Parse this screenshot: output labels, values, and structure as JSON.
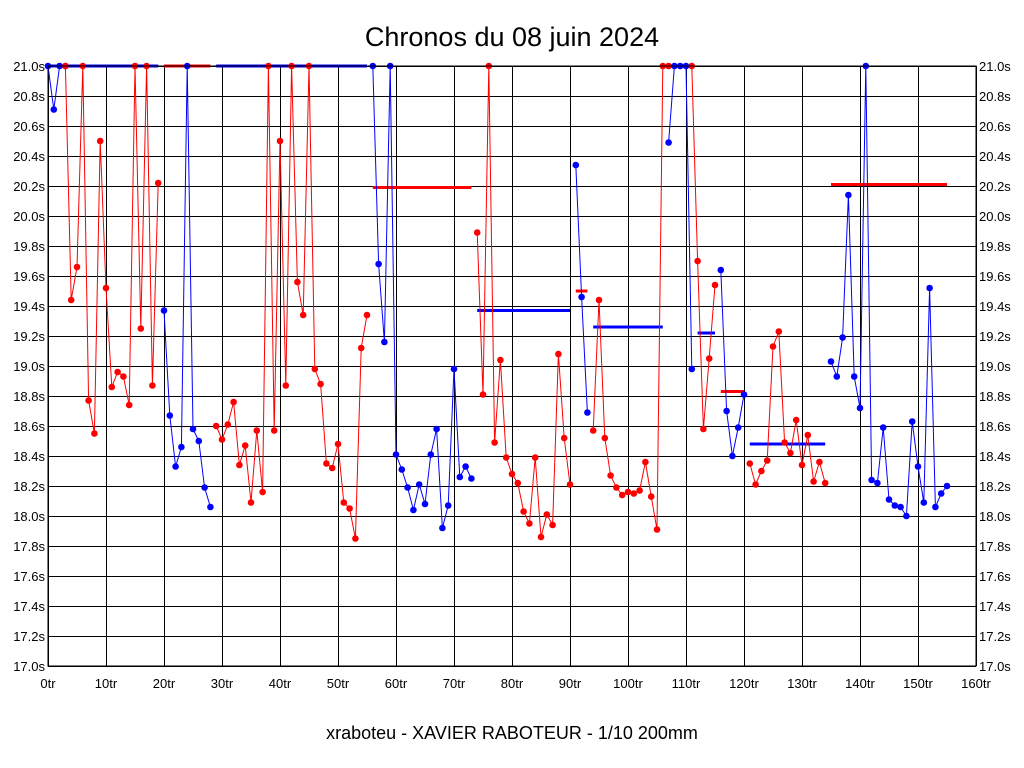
{
  "chart_data": {
    "type": "line",
    "title": "Chronos du 08 juin 2024",
    "subtitle": "xraboteu - XAVIER RABOTEUR - 1/10 200mm",
    "xlim": [
      0,
      160
    ],
    "ylim": [
      17.0,
      21.0
    ],
    "x_ticks": [
      0,
      10,
      20,
      30,
      40,
      50,
      60,
      70,
      80,
      90,
      100,
      110,
      120,
      130,
      140,
      150,
      160
    ],
    "x_tick_labels": [
      "0tr",
      "10tr",
      "20tr",
      "30tr",
      "40tr",
      "50tr",
      "60tr",
      "70tr",
      "80tr",
      "90tr",
      "100tr",
      "110tr",
      "120tr",
      "130tr",
      "140tr",
      "150tr",
      "160tr"
    ],
    "y_ticks": [
      17.0,
      17.2,
      17.4,
      17.6,
      17.8,
      18.0,
      18.2,
      18.4,
      18.6,
      18.8,
      19.0,
      19.2,
      19.4,
      19.6,
      19.8,
      20.0,
      20.2,
      20.4,
      20.6,
      20.8,
      21.0
    ],
    "y_tick_labels": [
      "17.0s",
      "17.2s",
      "17.4s",
      "17.6s",
      "17.8s",
      "18.0s",
      "18.2s",
      "18.4s",
      "18.6s",
      "18.8s",
      "19.0s",
      "19.2s",
      "19.4s",
      "19.6s",
      "19.8s",
      "20.0s",
      "20.2s",
      "20.4s",
      "20.6s",
      "20.8s",
      "21.0s"
    ],
    "grid": true,
    "colors": {
      "red": "#ff0000",
      "blue": "#0000ff"
    },
    "segments": [
      {
        "color": "blue",
        "x": [
          0,
          1,
          2,
          3
        ],
        "y": [
          21.0,
          20.71,
          21.0,
          21.0
        ]
      },
      {
        "color": "red",
        "x": [
          3,
          4,
          5,
          6,
          7,
          8,
          9,
          10,
          11,
          12,
          13,
          14,
          15,
          16,
          17,
          18,
          19
        ],
        "y": [
          21.0,
          19.44,
          19.66,
          21.0,
          18.77,
          18.55,
          20.5,
          19.52,
          18.86,
          18.96,
          18.93,
          18.74,
          21.0,
          19.25,
          21.0,
          18.87,
          20.22
        ]
      },
      {
        "color": "blue",
        "x": [
          20,
          21,
          22,
          23,
          24,
          25,
          26,
          27,
          28
        ],
        "y": [
          19.37,
          18.67,
          18.33,
          18.46,
          21.0,
          18.58,
          18.5,
          18.19,
          18.06
        ]
      },
      {
        "color": "red",
        "x": [
          29,
          30,
          31,
          32,
          33,
          34,
          35,
          36,
          37,
          38,
          39,
          40,
          41,
          42,
          43,
          44,
          45,
          46,
          47,
          48,
          49,
          50,
          51,
          52,
          53,
          54,
          55
        ],
        "y": [
          18.6,
          18.51,
          18.61,
          18.76,
          18.34,
          18.47,
          18.09,
          18.57,
          18.16,
          21.0,
          18.57,
          20.5,
          18.87,
          21.0,
          19.56,
          19.34,
          21.0,
          18.98,
          18.88,
          18.35,
          18.32,
          18.48,
          18.09,
          18.05,
          17.85,
          19.12,
          19.34
        ]
      },
      {
        "color": "blue",
        "x": [
          56,
          57,
          58,
          59,
          60,
          61,
          62,
          63,
          64,
          65,
          66,
          67,
          68,
          69,
          70,
          71,
          72,
          73
        ],
        "y": [
          21.0,
          19.68,
          19.16,
          21.0,
          18.41,
          18.31,
          18.19,
          18.04,
          18.21,
          18.08,
          18.41,
          18.58,
          17.92,
          18.07,
          18.98,
          18.26,
          18.33,
          18.25
        ]
      },
      {
        "color": "red",
        "x": [
          74,
          75,
          76,
          77,
          78,
          79,
          80,
          81,
          82,
          83,
          84,
          85,
          86,
          87,
          88,
          89,
          90
        ],
        "y": [
          19.89,
          18.81,
          21.0,
          18.49,
          19.04,
          18.39,
          18.28,
          18.22,
          18.03,
          17.95,
          18.39,
          17.86,
          18.01,
          17.94,
          19.08,
          18.52,
          18.21
        ]
      },
      {
        "color": "blue",
        "x": [
          91,
          92,
          93
        ],
        "y": [
          20.34,
          19.46,
          18.69
        ]
      },
      {
        "color": "red",
        "x": [
          94,
          95,
          96,
          97,
          98,
          99,
          100,
          101,
          102,
          103,
          104,
          105,
          106,
          107
        ],
        "y": [
          18.57,
          19.44,
          18.52,
          18.27,
          18.19,
          18.14,
          18.16,
          18.15,
          18.17,
          18.36,
          18.13,
          17.91,
          21.0,
          21.0
        ]
      },
      {
        "color": "blue",
        "x": [
          107,
          108,
          109,
          110,
          111
        ],
        "y": [
          20.49,
          21.0,
          21.0,
          21.0,
          18.98
        ]
      },
      {
        "color": "red",
        "x": [
          111,
          112,
          113,
          114,
          115
        ],
        "y": [
          21.0,
          19.7,
          18.58,
          19.05,
          19.54
        ]
      },
      {
        "color": "blue",
        "x": [
          116,
          117,
          118,
          119,
          120
        ],
        "y": [
          19.64,
          18.7,
          18.4,
          18.59,
          18.81
        ]
      },
      {
        "color": "red",
        "x": [
          121,
          122,
          123,
          124,
          125,
          126,
          127,
          128,
          129,
          130,
          131,
          132,
          133,
          134
        ],
        "y": [
          18.35,
          18.21,
          18.3,
          18.37,
          19.13,
          19.23,
          18.49,
          18.42,
          18.64,
          18.34,
          18.54,
          18.23,
          18.36,
          18.22
        ]
      },
      {
        "color": "blue",
        "x": [
          135,
          136,
          137,
          138,
          139,
          140,
          141,
          142,
          143,
          144,
          145,
          146,
          147,
          148,
          149,
          150,
          151,
          152,
          153,
          154,
          155
        ],
        "y": [
          19.03,
          18.93,
          19.19,
          20.14,
          18.93,
          18.72,
          21.0,
          18.24,
          18.22,
          18.59,
          18.11,
          18.07,
          18.06,
          18.0,
          18.63,
          18.33,
          18.09,
          19.52,
          18.06,
          18.15,
          18.2
        ]
      }
    ],
    "average_lines": [
      {
        "color": "blue",
        "x_start": 0,
        "x_end": 19,
        "y": 21.0
      },
      {
        "color": "red",
        "x_start": 20,
        "x_end": 28,
        "y": 21.0
      },
      {
        "color": "blue",
        "x_start": 29,
        "x_end": 55,
        "y": 21.0
      },
      {
        "color": "red",
        "x_start": 56,
        "x_end": 73,
        "y": 20.19
      },
      {
        "color": "blue",
        "x_start": 74,
        "x_end": 90,
        "y": 19.37
      },
      {
        "color": "red",
        "x_start": 91,
        "x_end": 93,
        "y": 19.5
      },
      {
        "color": "blue",
        "x_start": 94,
        "x_end": 106,
        "y": 19.26
      },
      {
        "color": "red",
        "x_start": 107,
        "x_end": 111,
        "y": 21.0
      },
      {
        "color": "blue",
        "x_start": 112,
        "x_end": 115,
        "y": 19.22
      },
      {
        "color": "red",
        "x_start": 116,
        "x_end": 120,
        "y": 18.83
      },
      {
        "color": "blue",
        "x_start": 121,
        "x_end": 134,
        "y": 18.48
      },
      {
        "color": "red",
        "x_start": 135,
        "x_end": 155,
        "y": 20.21
      }
    ]
  }
}
